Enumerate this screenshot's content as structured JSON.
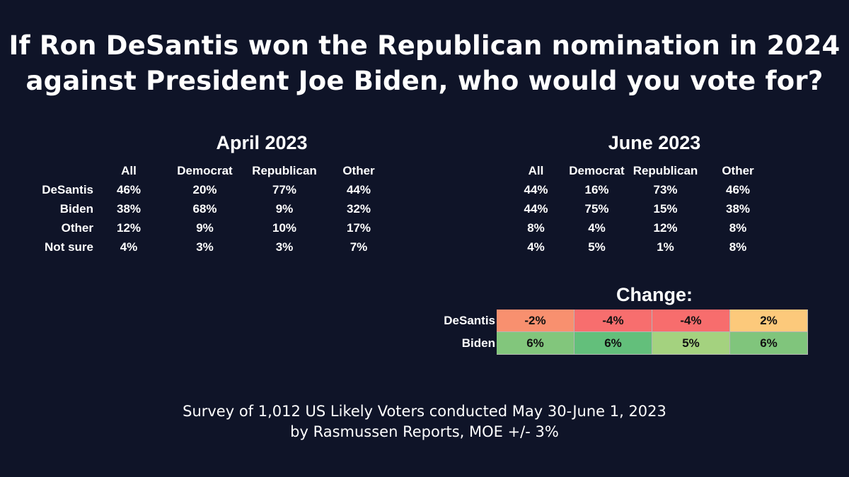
{
  "title": {
    "line1": "If Ron DeSantis won the Republican nomination in 2024",
    "line2": "against President Joe Biden, who would you vote for?"
  },
  "chart_data": [
    {
      "type": "table",
      "title": "April 2023",
      "columns": [
        "All",
        "Democrat",
        "Republican",
        "Other"
      ],
      "rows": [
        {
          "label": "DeSantis",
          "values": [
            "46%",
            "20%",
            "77%",
            "44%"
          ]
        },
        {
          "label": "Biden",
          "values": [
            "38%",
            "68%",
            "9%",
            "32%"
          ]
        },
        {
          "label": "Other",
          "values": [
            "12%",
            "9%",
            "10%",
            "17%"
          ]
        },
        {
          "label": "Not sure",
          "values": [
            "4%",
            "3%",
            "3%",
            "7%"
          ]
        }
      ]
    },
    {
      "type": "table",
      "title": "June 2023",
      "columns": [
        "All",
        "Democrat",
        "Republican",
        "Other"
      ],
      "rows": [
        {
          "label": "DeSantis",
          "values": [
            "44%",
            "16%",
            "73%",
            "46%"
          ]
        },
        {
          "label": "Biden",
          "values": [
            "44%",
            "75%",
            "15%",
            "38%"
          ]
        },
        {
          "label": "Other",
          "values": [
            "8%",
            "4%",
            "12%",
            "8%"
          ]
        },
        {
          "label": "Not sure",
          "values": [
            "4%",
            "5%",
            "1%",
            "8%"
          ]
        }
      ]
    },
    {
      "type": "heatmap",
      "title": "Change:",
      "rows": [
        {
          "label": "DeSantis",
          "values": [
            "-2%",
            "-4%",
            "-4%",
            "2%"
          ],
          "colors": [
            "#f8906f",
            "#f76e6e",
            "#f76d6d",
            "#fcc97b"
          ]
        },
        {
          "label": "Biden",
          "values": [
            "6%",
            "6%",
            "5%",
            "6%"
          ],
          "colors": [
            "#82c67c",
            "#63bf7b",
            "#a4d27f",
            "#80c57c"
          ]
        }
      ]
    }
  ],
  "footer": {
    "line1": "Survey of 1,012 US Likely Voters conducted May 30-June 1, 2023",
    "line2": "by Rasmussen Reports, MOE +/- 3%"
  }
}
